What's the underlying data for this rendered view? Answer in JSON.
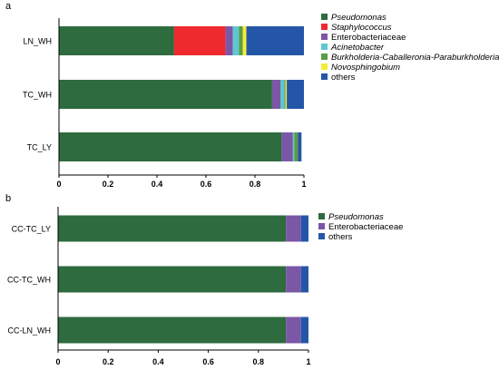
{
  "chart_data": [
    {
      "panel_label": "a",
      "type": "bar",
      "orientation": "horizontal",
      "stacked": true,
      "categories": [
        "LN_WH",
        "TC_WH",
        "TC_LY"
      ],
      "xlim": [
        0,
        1
      ],
      "x_ticks": [
        "0",
        "0.2",
        "0.4",
        "0.6",
        "0.8",
        "1"
      ],
      "legend_position": "right",
      "series": [
        {
          "name": "Pseudomonas",
          "italic": true,
          "color": "#2e6b3e",
          "values": [
            0.47,
            0.87,
            0.91
          ]
        },
        {
          "name": "Staphylococcus",
          "italic": true,
          "color": "#ee2a2e",
          "values": [
            0.21,
            0.0,
            0.0
          ]
        },
        {
          "name": "Enterobacteriaceae",
          "italic": false,
          "color": "#7b57a6",
          "values": [
            0.03,
            0.035,
            0.045
          ]
        },
        {
          "name": "Acinetobacter",
          "italic": true,
          "color": "#5ec8d0",
          "values": [
            0.025,
            0.015,
            0.005
          ]
        },
        {
          "name": "Burkholderia-Caballeronia-Paraburkholderia",
          "italic": true,
          "color": "#5d9c48",
          "values": [
            0.015,
            0.005,
            0.015
          ]
        },
        {
          "name": "Novosphingobium",
          "italic": true,
          "color": "#f2ec3a",
          "values": [
            0.015,
            0.005,
            0.0
          ]
        },
        {
          "name": "others",
          "italic": false,
          "color": "#2456a8",
          "values": [
            0.235,
            0.07,
            0.015
          ]
        }
      ]
    },
    {
      "panel_label": "b",
      "type": "bar",
      "orientation": "horizontal",
      "stacked": true,
      "categories": [
        "CC-TC_LY",
        "CC-TC_WH",
        "CC-LN_WH"
      ],
      "xlim": [
        0,
        1
      ],
      "x_ticks": [
        "0",
        "0.2",
        "0.4",
        "0.6",
        "0.8",
        "1"
      ],
      "legend_position": "right",
      "series": [
        {
          "name": "Pseudomonas",
          "italic": true,
          "color": "#2e6b3e",
          "values": [
            0.91,
            0.91,
            0.91
          ]
        },
        {
          "name": "Enterobacteriaceae",
          "italic": false,
          "color": "#7b57a6",
          "values": [
            0.06,
            0.06,
            0.06
          ]
        },
        {
          "name": "others",
          "italic": false,
          "color": "#2456a8",
          "values": [
            0.03,
            0.03,
            0.03
          ]
        }
      ]
    }
  ]
}
